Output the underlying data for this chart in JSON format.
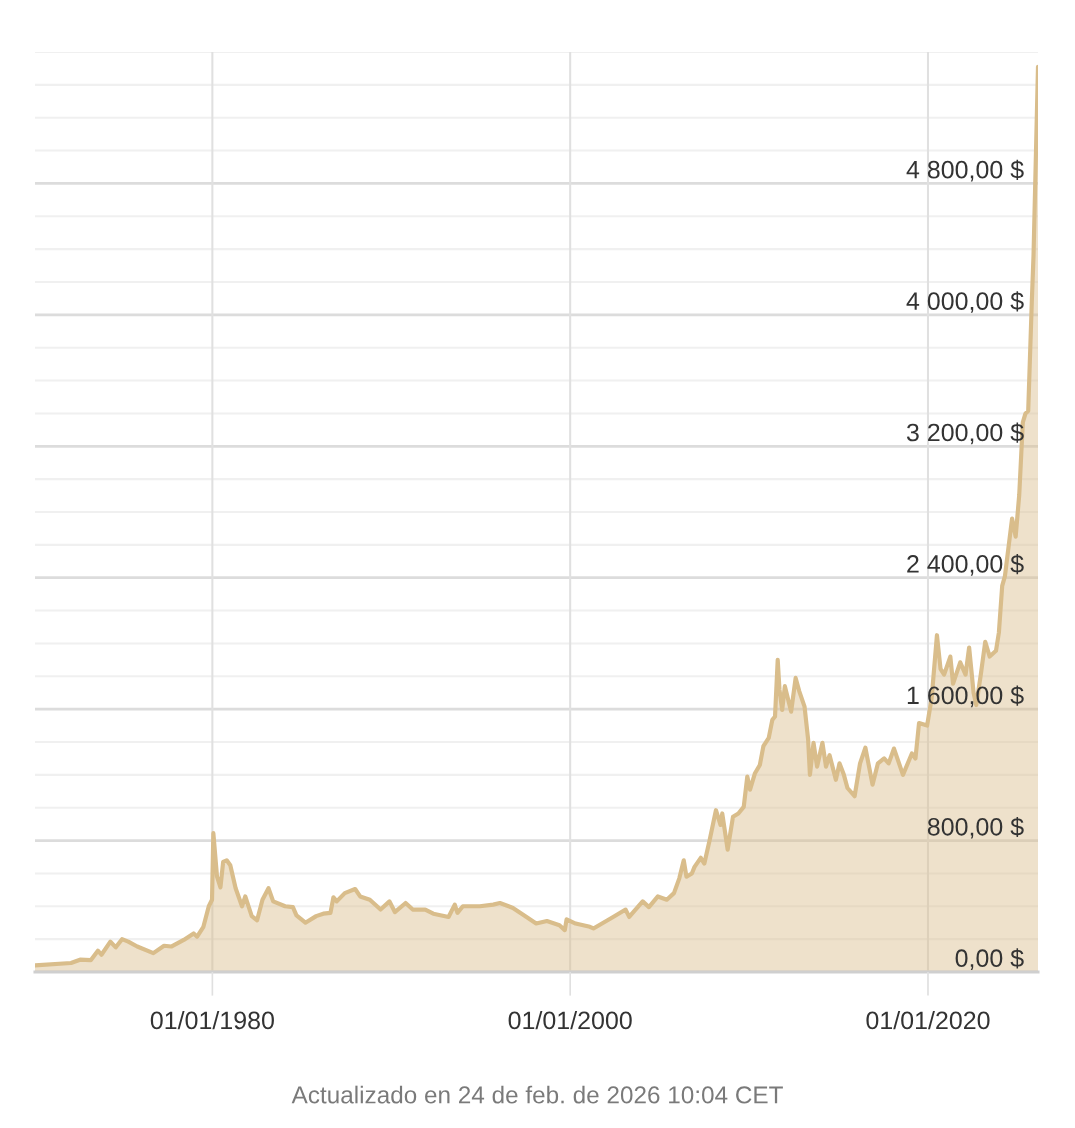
{
  "chart_data": {
    "type": "area",
    "x": [
      "1970-02-01",
      "1972-02-06",
      "1972-08-08",
      "1973-03-15",
      "1973-08-08",
      "1973-10-20",
      "1974-04-20",
      "1974-08-08",
      "1974-12-14",
      "1975-04-20",
      "1975-10-20",
      "1976-09-13",
      "1977-04-20",
      "1977-09-13",
      "1978-05-27",
      "1978-12-15",
      "1979-02-24",
      "1979-07-02",
      "1979-10-20",
      "1979-12-25",
      "1980-01-21",
      "1980-04-05",
      "1980-06-14",
      "1980-08-08",
      "1980-10-20",
      "1981-01-01",
      "1981-04-20",
      "1981-08-28",
      "1981-11-03",
      "1982-03-15",
      "1982-07-02",
      "1982-10-20",
      "1983-02-20",
      "1983-05-27",
      "1984-01-25",
      "1984-07-02",
      "1984-09-13",
      "1985-03-15",
      "1985-10-20",
      "1986-03-15",
      "1986-08-08",
      "1986-10-08",
      "1986-12-14",
      "1987-05-27",
      "1987-12-25",
      "1988-04-05",
      "1988-10-20",
      "1989-05-27",
      "1989-11-25",
      "1990-03-15",
      "1990-10-20",
      "1991-03-15",
      "1991-11-25",
      "1992-05-08",
      "1993-03-15",
      "1993-07-20",
      "1993-09-13",
      "1994-01-01",
      "1994-12-14",
      "1995-09-13",
      "1996-01-27",
      "1996-10-20",
      "1997-07-23",
      "1998-02-06",
      "1998-09-13",
      "1999-05-27",
      "1999-09-13",
      "1999-10-20",
      "2000-04-20",
      "2001-02-06",
      "2001-04-20",
      "2002-05-27",
      "2003-02-06",
      "2003-04-20",
      "2004-01-20",
      "2004-05-27",
      "2004-11-25",
      "2005-05-27",
      "2005-10-20",
      "2006-02-06",
      "2006-05-08",
      "2006-07-02",
      "2006-10-20",
      "2006-12-14",
      "2007-04-20",
      "2007-07-02",
      "2007-10-20",
      "2008-02-24",
      "2008-05-27",
      "2008-07-02",
      "2008-10-20",
      "2009-02-06",
      "2009-05-27",
      "2009-09-13",
      "2009-11-25",
      "2010-01-20",
      "2010-05-01",
      "2010-08-08",
      "2010-10-20",
      "2011-02-06",
      "2011-04-20",
      "2011-06-14",
      "2011-08-08",
      "2011-09-13",
      "2011-11-07",
      "2012-01-01",
      "2012-05-08",
      "2012-08-08",
      "2012-10-20",
      "2013-02-06",
      "2013-04-20",
      "2013-05-27",
      "2013-08-08",
      "2013-10-20",
      "2014-02-06",
      "2014-04-20",
      "2014-07-02",
      "2014-11-07",
      "2015-01-20",
      "2015-04-20",
      "2015-07-02",
      "2015-11-25",
      "2016-03-15",
      "2016-07-02",
      "2016-11-25",
      "2017-03-15",
      "2017-07-20",
      "2017-10-20",
      "2018-02-06",
      "2018-08-08",
      "2019-02-06",
      "2019-04-20",
      "2019-07-02",
      "2019-12-14",
      "2020-03-15",
      "2020-07-02",
      "2020-09-13",
      "2020-11-25",
      "2021-04-01",
      "2021-05-27",
      "2021-10-20",
      "2022-02-06",
      "2022-04-20",
      "2022-07-20",
      "2022-09-13",
      "2022-12-14",
      "2023-03-15",
      "2023-06-14",
      "2023-10-20",
      "2023-12-18",
      "2024-02-24",
      "2024-04-20",
      "2024-09-13",
      "2024-11-25",
      "2025-02-06",
      "2025-04-20",
      "2025-06-14",
      "2025-08-08",
      "2025-10-20",
      "2025-11-25",
      "2026-02-24"
    ],
    "series": [
      {
        "color": "#d9bd8b",
        "values": [
          40,
          55,
          75,
          72,
          130,
          105,
          185,
          150,
          200,
          185,
          155,
          115,
          160,
          155,
          195,
          235,
          215,
          275,
          400,
          440,
          845,
          580,
          515,
          670,
          680,
          650,
          510,
          400,
          460,
          340,
          315,
          440,
          510,
          430,
          400,
          395,
          345,
          300,
          340,
          355,
          360,
          455,
          430,
          480,
          505,
          460,
          440,
          380,
          430,
          365,
          420,
          380,
          380,
          355,
          335,
          410,
          360,
          400,
          400,
          410,
          420,
          390,
          335,
          295,
          310,
          285,
          255,
          320,
          295,
          275,
          265,
          335,
          380,
          335,
          430,
          395,
          460,
          440,
          480,
          570,
          680,
          580,
          600,
          640,
          695,
          660,
          805,
          985,
          895,
          965,
          745,
          945,
          965,
          1005,
          1190,
          1110,
          1210,
          1260,
          1375,
          1425,
          1535,
          1555,
          1900,
          1720,
          1595,
          1740,
          1585,
          1790,
          1710,
          1615,
          1415,
          1200,
          1395,
          1250,
          1395,
          1250,
          1320,
          1170,
          1270,
          1200,
          1120,
          1070,
          1270,
          1365,
          1140,
          1270,
          1300,
          1270,
          1360,
          1200,
          1330,
          1300,
          1515,
          1500,
          1665,
          2050,
          1845,
          1810,
          1920,
          1755,
          1885,
          1810,
          1975,
          1700,
          1625,
          1810,
          2010,
          1920,
          1955,
          2065,
          2350,
          2410,
          2760,
          2650,
          2905,
          3345,
          3400,
          3415,
          4075,
          4365,
          5510
        ]
      }
    ],
    "xlim": [
      "1970-02-01",
      "2026-02-24"
    ],
    "xticks": [
      {
        "value": "1980-01-01",
        "label": "01/01/1980"
      },
      {
        "value": "2000-01-01",
        "label": "01/01/2000"
      },
      {
        "value": "2020-01-01",
        "label": "01/01/2020"
      }
    ],
    "ylim": [
      0,
      5600
    ],
    "yticks": [
      {
        "value": 0,
        "label": "0,00 $"
      },
      {
        "value": 200,
        "label": null
      },
      {
        "value": 400,
        "label": null
      },
      {
        "value": 600,
        "label": null
      },
      {
        "value": 800,
        "label": "800,00 $"
      },
      {
        "value": 1000,
        "label": null
      },
      {
        "value": 1200,
        "label": null
      },
      {
        "value": 1400,
        "label": null
      },
      {
        "value": 1600,
        "label": "1 600,00 $"
      },
      {
        "value": 1800,
        "label": null
      },
      {
        "value": 2000,
        "label": null
      },
      {
        "value": 2200,
        "label": null
      },
      {
        "value": 2400,
        "label": "2 400,00 $"
      },
      {
        "value": 2600,
        "label": null
      },
      {
        "value": 2800,
        "label": null
      },
      {
        "value": 3000,
        "label": null
      },
      {
        "value": 3200,
        "label": "3 200,00 $"
      },
      {
        "value": 3400,
        "label": null
      },
      {
        "value": 3600,
        "label": null
      },
      {
        "value": 3800,
        "label": null
      },
      {
        "value": 4000,
        "label": "4 000,00 $"
      },
      {
        "value": 4200,
        "label": null
      },
      {
        "value": 4400,
        "label": null
      },
      {
        "value": 4600,
        "label": null
      },
      {
        "value": 4800,
        "label": "4 800,00 $"
      },
      {
        "value": 5000,
        "label": null
      },
      {
        "value": 5200,
        "label": null
      },
      {
        "value": 5400,
        "label": null
      },
      {
        "value": 5600,
        "label": null
      }
    ],
    "grid": true,
    "annotations": [
      "Actualizado en 24 de feb. de 2026 10:04 CET"
    ]
  }
}
